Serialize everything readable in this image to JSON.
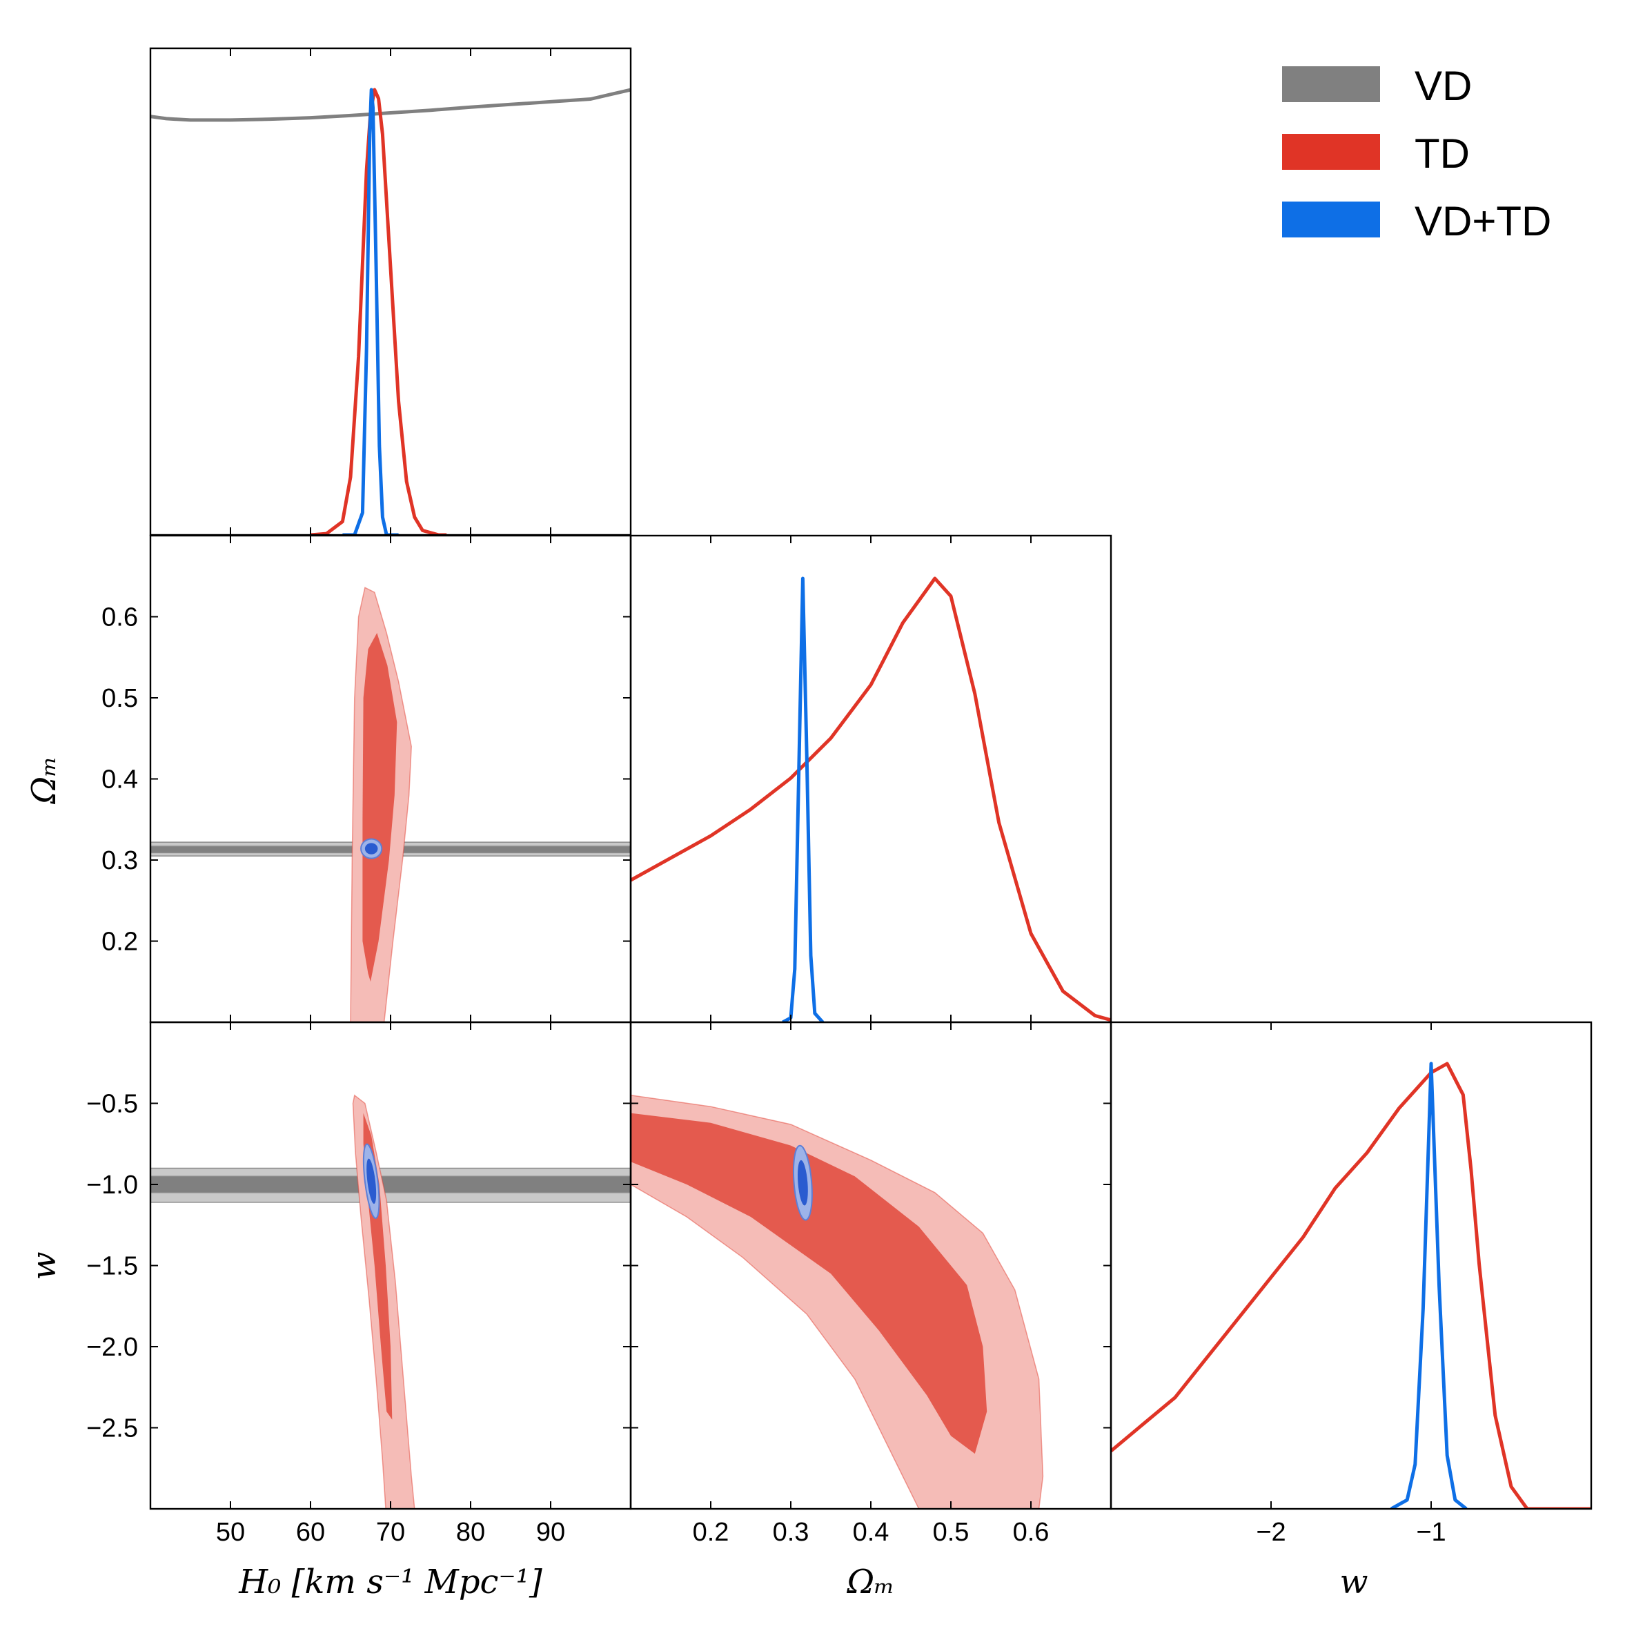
{
  "chart_data": {
    "type": "corner-plot",
    "parameters": [
      "H0",
      "Omega_m",
      "w"
    ],
    "axis_labels": {
      "H0": "H₀ [km s⁻¹ Mpc⁻¹]",
      "Omega_m": "Ωₘ",
      "w": "w"
    },
    "ranges": {
      "H0": [
        40,
        100
      ],
      "Omega_m": [
        0.1,
        0.7
      ],
      "w": [
        -3.0,
        0.0
      ]
    },
    "ticks": {
      "H0": {
        "values": [
          50,
          60,
          70,
          80,
          90
        ],
        "labels": [
          "50",
          "60",
          "70",
          "80",
          "90"
        ]
      },
      "Omega_m": {
        "values": [
          0.2,
          0.3,
          0.4,
          0.5,
          0.6
        ],
        "labels": [
          "0.2",
          "0.3",
          "0.4",
          "0.5",
          "0.6"
        ]
      },
      "w": {
        "values": [
          -2.5,
          -2.0,
          -1.5,
          -1.0,
          -0.5
        ],
        "labels": [
          "−2.5",
          "−2.0",
          "−1.5",
          "−1.0",
          "−0.5"
        ]
      },
      "w_bottom": {
        "values": [
          -2,
          -1
        ],
        "labels": [
          "−2",
          "−1"
        ]
      }
    },
    "series": [
      {
        "name": "VD",
        "color": "#808080",
        "fill_dark": "#808080",
        "fill_light": "#c9c9c9",
        "marginals": {
          "H0": [
            [
              40,
              0.94
            ],
            [
              42,
              0.935
            ],
            [
              45,
              0.932
            ],
            [
              50,
              0.932
            ],
            [
              55,
              0.934
            ],
            [
              60,
              0.937
            ],
            [
              65,
              0.942
            ],
            [
              70,
              0.948
            ],
            [
              75,
              0.954
            ],
            [
              80,
              0.961
            ],
            [
              85,
              0.967
            ],
            [
              90,
              0.973
            ],
            [
              95,
              0.979
            ],
            [
              100,
              1.0
            ]
          ]
        },
        "contours2d": {
          "H0_Omega_m": {
            "center": [
              70,
              0.313
            ],
            "band_68": [
              0.309,
              0.317
            ],
            "band_95": [
              0.305,
              0.322
            ]
          },
          "H0_w": {
            "center": [
              70,
              -1.0
            ],
            "band_68": [
              -1.05,
              -0.95
            ],
            "band_95": [
              -1.11,
              -0.9
            ]
          }
        }
      },
      {
        "name": "TD",
        "color": "#e03426",
        "fill_dark": "#e45a4e",
        "fill_light": "#f5bcb7",
        "marginals": {
          "H0": [
            [
              60,
              0.0
            ],
            [
              62,
              0.003
            ],
            [
              64,
              0.03
            ],
            [
              65,
              0.13
            ],
            [
              66,
              0.4
            ],
            [
              67,
              0.82
            ],
            [
              67.5,
              0.95
            ],
            [
              68,
              1.0
            ],
            [
              68.5,
              0.98
            ],
            [
              69,
              0.9
            ],
            [
              70,
              0.6
            ],
            [
              71,
              0.3
            ],
            [
              72,
              0.12
            ],
            [
              73,
              0.04
            ],
            [
              74,
              0.01
            ],
            [
              76,
              0.0
            ],
            [
              77,
              0.0
            ]
          ],
          "Omega_m": [
            [
              0.1,
              0.32
            ],
            [
              0.15,
              0.37
            ],
            [
              0.2,
              0.42
            ],
            [
              0.25,
              0.48
            ],
            [
              0.3,
              0.55
            ],
            [
              0.35,
              0.64
            ],
            [
              0.4,
              0.76
            ],
            [
              0.44,
              0.9
            ],
            [
              0.48,
              1.0
            ],
            [
              0.5,
              0.96
            ],
            [
              0.53,
              0.74
            ],
            [
              0.56,
              0.45
            ],
            [
              0.6,
              0.2
            ],
            [
              0.64,
              0.07
            ],
            [
              0.68,
              0.015
            ],
            [
              0.7,
              0.005
            ]
          ],
          "w": [
            [
              -3.0,
              0.13
            ],
            [
              -2.8,
              0.19
            ],
            [
              -2.6,
              0.25
            ],
            [
              -2.4,
              0.34
            ],
            [
              -2.2,
              0.43
            ],
            [
              -2.0,
              0.52
            ],
            [
              -1.8,
              0.61
            ],
            [
              -1.6,
              0.72
            ],
            [
              -1.4,
              0.8
            ],
            [
              -1.2,
              0.9
            ],
            [
              -1.0,
              0.98
            ],
            [
              -0.9,
              1.0
            ],
            [
              -0.8,
              0.93
            ],
            [
              -0.75,
              0.76
            ],
            [
              -0.7,
              0.55
            ],
            [
              -0.6,
              0.21
            ],
            [
              -0.5,
              0.05
            ],
            [
              -0.4,
              0.0
            ],
            [
              0.0,
              0.0
            ]
          ]
        },
        "contours2d": {
          "H0_Omega_m": {
            "c95": [
              [
                65,
                0.1
              ],
              [
                65.2,
                0.3
              ],
              [
                65.5,
                0.5
              ],
              [
                66,
                0.6
              ],
              [
                66.8,
                0.636
              ],
              [
                68,
                0.63
              ],
              [
                69.5,
                0.58
              ],
              [
                71,
                0.52
              ],
              [
                72.6,
                0.44
              ],
              [
                72.3,
                0.38
              ],
              [
                71.5,
                0.3
              ],
              [
                70.3,
                0.2
              ],
              [
                69.2,
                0.1
              ]
            ],
            "c68": [
              [
                66.5,
                0.2
              ],
              [
                66.5,
                0.35
              ],
              [
                66.6,
                0.5
              ],
              [
                67.2,
                0.56
              ],
              [
                68.3,
                0.58
              ],
              [
                69.6,
                0.54
              ],
              [
                70.8,
                0.47
              ],
              [
                70.5,
                0.38
              ],
              [
                69.8,
                0.3
              ],
              [
                68.5,
                0.2
              ],
              [
                67.5,
                0.15
              ],
              [
                67.2,
                0.16
              ]
            ]
          },
          "H0_w": {
            "c95": [
              [
                65.5,
                -0.45
              ],
              [
                66.8,
                -0.5
              ],
              [
                68.2,
                -0.8
              ],
              [
                69.5,
                -1.1
              ],
              [
                70.6,
                -1.6
              ],
              [
                71.6,
                -2.2
              ],
              [
                72.6,
                -2.8
              ],
              [
                73,
                -3.0
              ],
              [
                69.4,
                -3.0
              ],
              [
                69,
                -2.7
              ],
              [
                68.2,
                -2.2
              ],
              [
                67.3,
                -1.7
              ],
              [
                66.3,
                -1.2
              ],
              [
                65.6,
                -0.8
              ],
              [
                65.3,
                -0.5
              ]
            ],
            "c68": [
              [
                66.6,
                -0.56
              ],
              [
                67.6,
                -0.7
              ],
              [
                68.6,
                -1.0
              ],
              [
                69.4,
                -1.5
              ],
              [
                70.0,
                -2.0
              ],
              [
                70.2,
                -2.45
              ],
              [
                69.5,
                -2.4
              ],
              [
                68.8,
                -2.0
              ],
              [
                68.0,
                -1.5
              ],
              [
                67.2,
                -1.1
              ],
              [
                66.6,
                -0.75
              ]
            ]
          },
          "Omega_m_w": {
            "c95": [
              [
                0.1,
                -0.45
              ],
              [
                0.2,
                -0.52
              ],
              [
                0.3,
                -0.63
              ],
              [
                0.4,
                -0.85
              ],
              [
                0.48,
                -1.05
              ],
              [
                0.54,
                -1.3
              ],
              [
                0.58,
                -1.65
              ],
              [
                0.61,
                -2.2
              ],
              [
                0.615,
                -2.8
              ],
              [
                0.61,
                -3.0
              ],
              [
                0.46,
                -3.0
              ],
              [
                0.43,
                -2.7
              ],
              [
                0.38,
                -2.2
              ],
              [
                0.32,
                -1.8
              ],
              [
                0.24,
                -1.45
              ],
              [
                0.17,
                -1.2
              ],
              [
                0.1,
                -1.0
              ]
            ],
            "c68": [
              [
                0.1,
                -0.56
              ],
              [
                0.2,
                -0.62
              ],
              [
                0.3,
                -0.76
              ],
              [
                0.38,
                -0.95
              ],
              [
                0.46,
                -1.26
              ],
              [
                0.52,
                -1.62
              ],
              [
                0.54,
                -2.0
              ],
              [
                0.545,
                -2.4
              ],
              [
                0.53,
                -2.66
              ],
              [
                0.5,
                -2.55
              ],
              [
                0.47,
                -2.3
              ],
              [
                0.41,
                -1.9
              ],
              [
                0.35,
                -1.55
              ],
              [
                0.25,
                -1.2
              ],
              [
                0.17,
                -1.0
              ],
              [
                0.1,
                -0.86
              ]
            ]
          }
        }
      },
      {
        "name": "VD+TD",
        "color": "#0e6fe6",
        "fill_dark": "#2a5bd0",
        "fill_light": "#9db3e9",
        "marginals": {
          "H0": [
            [
              64,
              0.0
            ],
            [
              65.5,
              0.0
            ],
            [
              66.5,
              0.05
            ],
            [
              67,
              0.42
            ],
            [
              67.4,
              0.9
            ],
            [
              67.6,
              1.0
            ],
            [
              67.8,
              0.96
            ],
            [
              68.2,
              0.6
            ],
            [
              68.6,
              0.2
            ],
            [
              69,
              0.04
            ],
            [
              69.5,
              0.0
            ],
            [
              71,
              0.0
            ]
          ],
          "Omega_m": [
            [
              0.29,
              0.0
            ],
            [
              0.3,
              0.01
            ],
            [
              0.305,
              0.12
            ],
            [
              0.31,
              0.56
            ],
            [
              0.315,
              1.0
            ],
            [
              0.32,
              0.6
            ],
            [
              0.325,
              0.15
            ],
            [
              0.33,
              0.02
            ],
            [
              0.34,
              0.0
            ]
          ],
          "w": [
            [
              -1.25,
              0.0
            ],
            [
              -1.15,
              0.02
            ],
            [
              -1.1,
              0.1
            ],
            [
              -1.05,
              0.45
            ],
            [
              -1.0,
              1.0
            ],
            [
              -0.95,
              0.5
            ],
            [
              -0.9,
              0.12
            ],
            [
              -0.85,
              0.02
            ],
            [
              -0.78,
              0.0
            ]
          ]
        },
        "contours2d": {
          "H0_Omega_m": {
            "center": [
              67.6,
              0.314
            ],
            "r95": [
              1.3,
              0.012
            ],
            "r68": [
              0.8,
              0.007
            ],
            "angle": 0
          },
          "H0_w": {
            "center": [
              67.6,
              -0.98
            ],
            "r95": [
              0.8,
              0.23
            ],
            "r68": [
              0.5,
              0.14
            ],
            "angle": 0.12
          },
          "Omega_m_w": {
            "center": [
              0.315,
              -0.99
            ],
            "r95": [
              0.011,
              0.23
            ],
            "r68": [
              0.006,
              0.14
            ],
            "angle": 0.08
          }
        }
      }
    ],
    "legend": {
      "position": "top-right",
      "entries": [
        "VD",
        "TD",
        "VD+TD"
      ]
    }
  }
}
